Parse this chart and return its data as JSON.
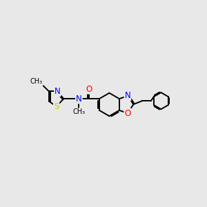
{
  "background_color": "#e8e8e8",
  "atom_colors": {
    "N": "#0000ff",
    "O": "#ff0000",
    "S": "#cccc00",
    "C": "#000000"
  },
  "bond_color": "#000000",
  "bond_width": 1.4,
  "font_size_atoms": 8.5
}
